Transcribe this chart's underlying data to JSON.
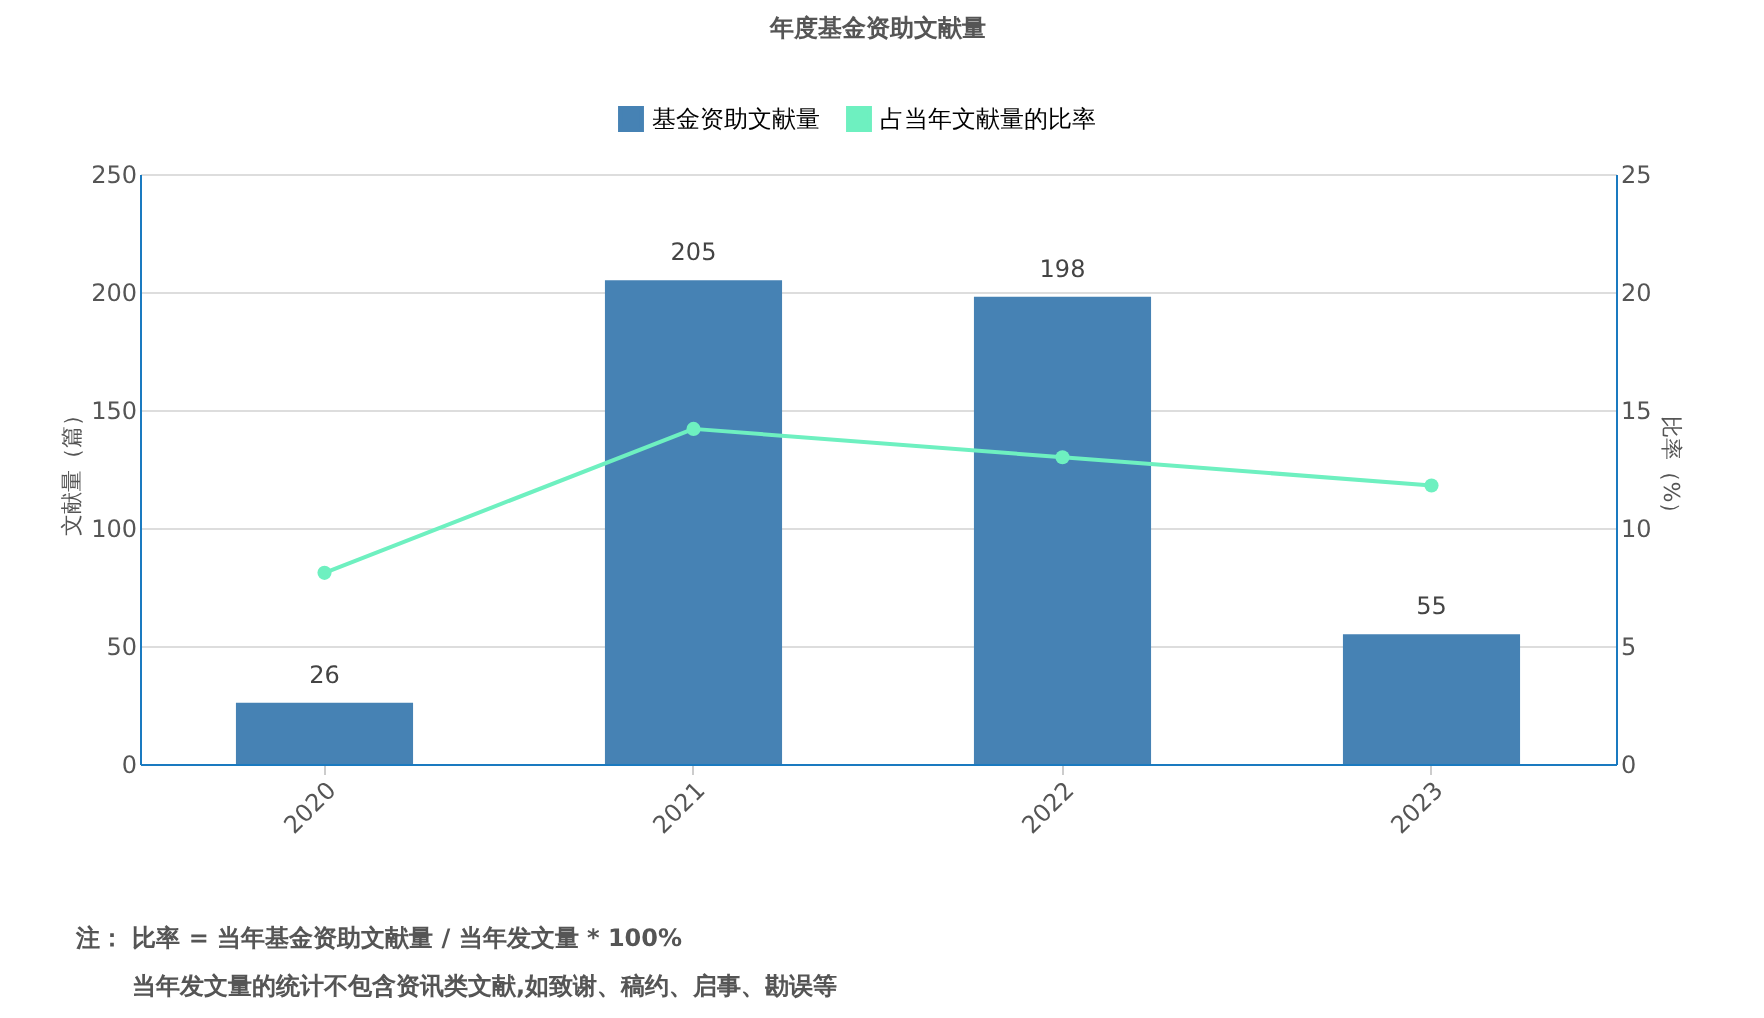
{
  "chart_data": {
    "type": "bar",
    "title": "年度基金资助文献量",
    "ylabel": "文献量（篇）",
    "y2label": "比率（%）",
    "categories": [
      "2020",
      "2021",
      "2022",
      "2023"
    ],
    "series": [
      {
        "name": "基金资助文献量",
        "type": "bar",
        "color": "#4682b4",
        "values": [
          26,
          205,
          198,
          55
        ],
        "value_labels": [
          "26",
          "205",
          "198",
          "55"
        ]
      },
      {
        "name": "占当年文献量的比率",
        "type": "line",
        "axis": "y2",
        "color": "#6ef0c0",
        "marker": "circle",
        "values": [
          8.1,
          14.2,
          13.0,
          11.8
        ]
      }
    ],
    "ylim": [
      0,
      250
    ],
    "yticks": [
      0,
      50,
      100,
      150,
      200,
      250
    ],
    "y2lim": [
      0,
      25
    ],
    "y2ticks": [
      0,
      5,
      10,
      15,
      20,
      25
    ],
    "grid": "y",
    "legend": "top",
    "annotations": [
      "注： 比率 = 当年基金资助文献量 / 当年发文量 * 100%",
      "当年发文量的统计不包含资讯类文献,如致谢、稿约、启事、勘误等"
    ]
  }
}
